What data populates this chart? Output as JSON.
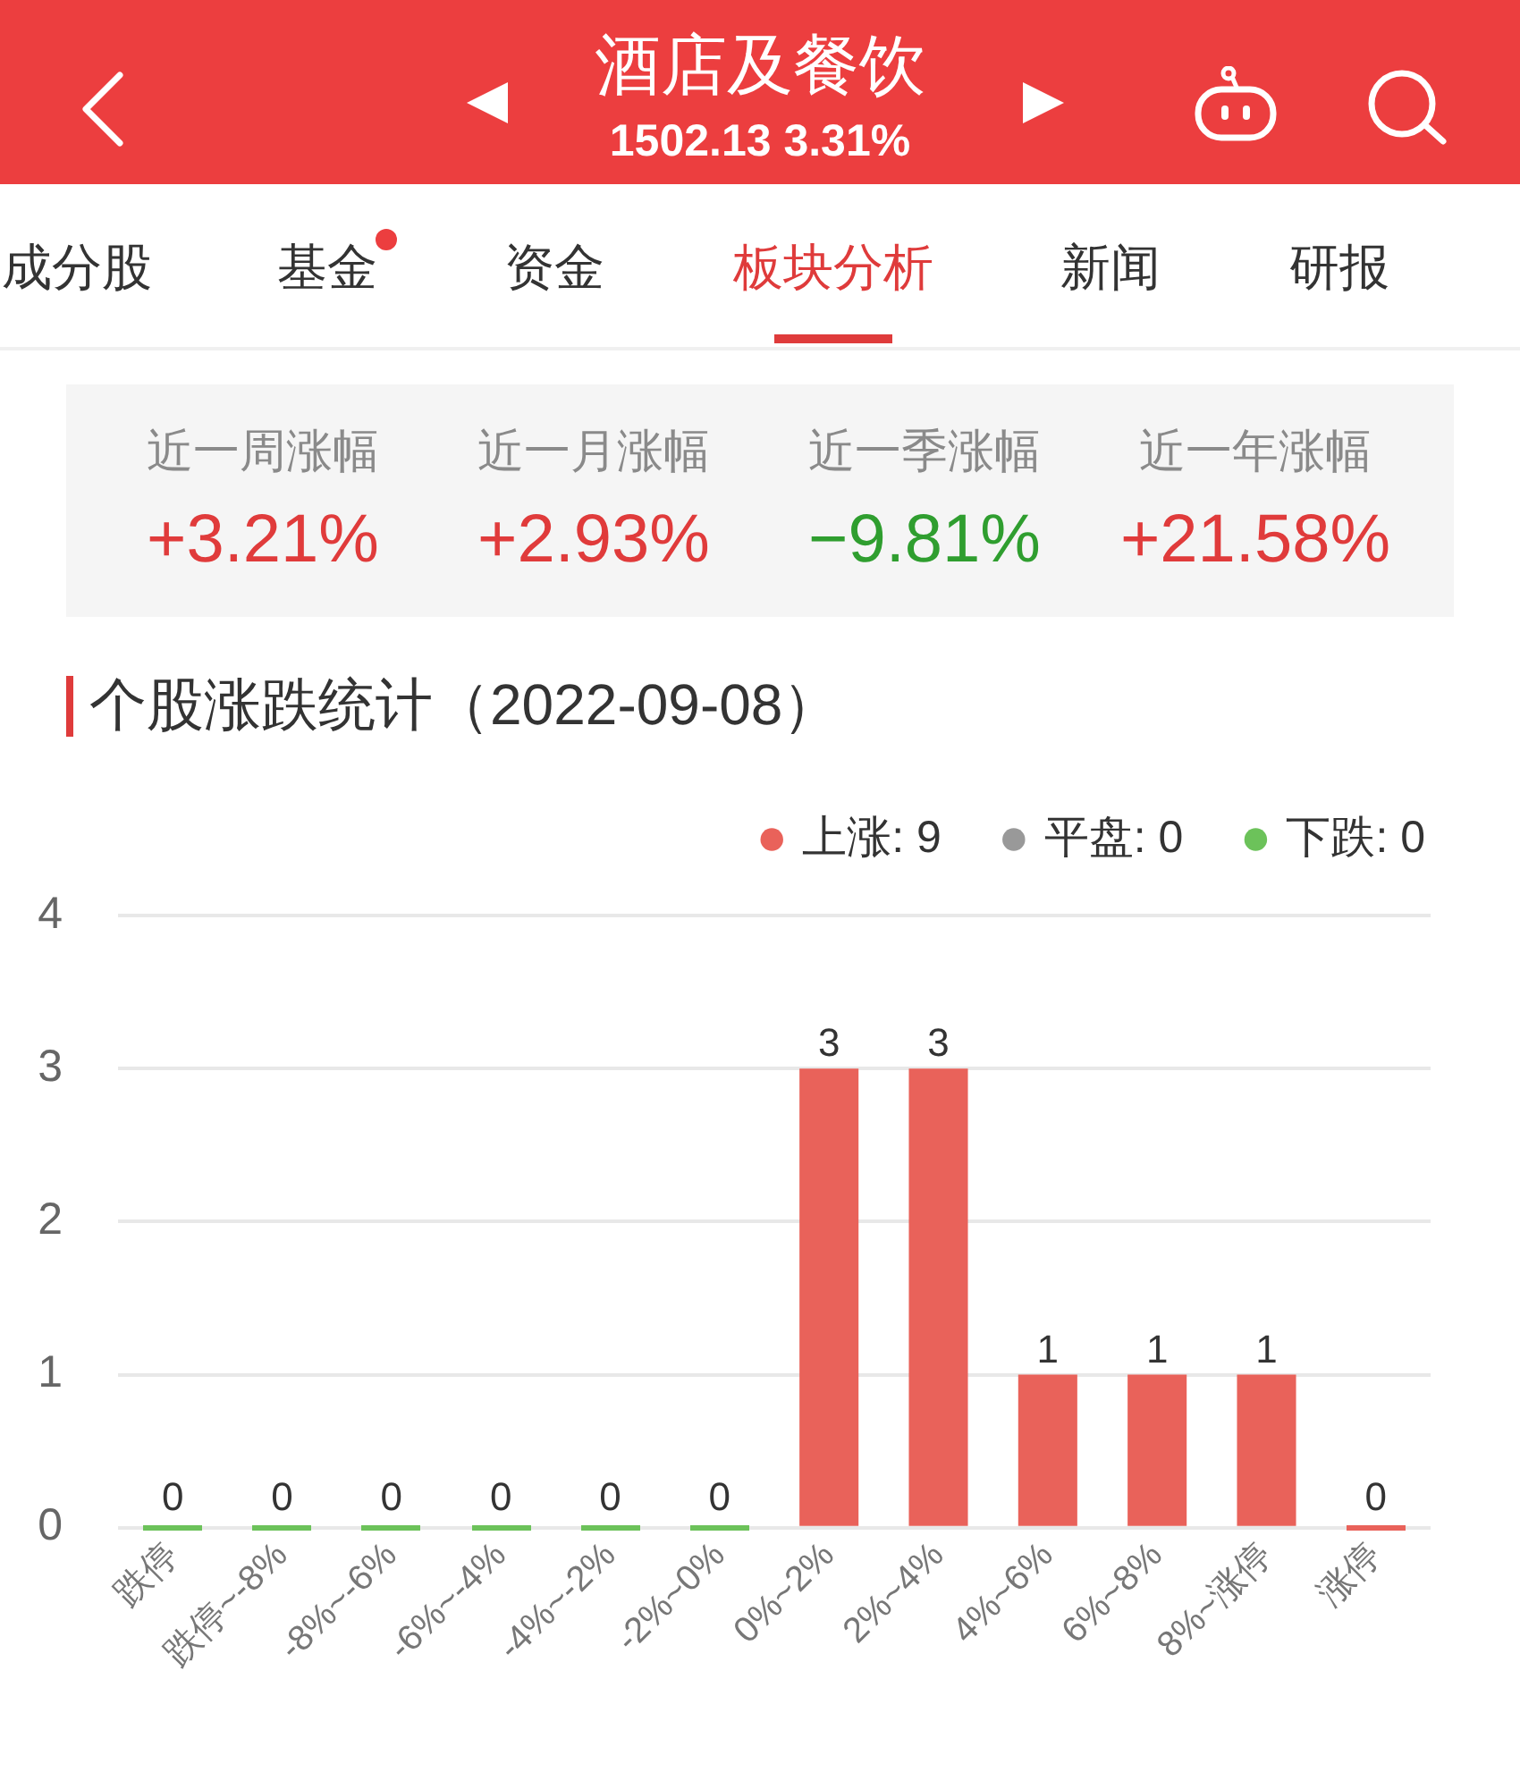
{
  "chart_data": [
    {
      "type": "other",
      "title": "酒店及餐饮",
      "subtitle": "1502.13 3.31%",
      "annotations": [
        "成分股",
        "基金",
        "资金",
        "板块分析",
        "新闻",
        "研报"
      ]
    },
    {
      "type": "other",
      "categories": [
        "近一周涨幅",
        "近一月涨幅",
        "近一季涨幅",
        "近一年涨幅"
      ],
      "values": [
        3.21,
        2.93,
        -9.81,
        21.58
      ],
      "value_labels": [
        "+3.21%",
        "+2.93%",
        "−9.81%",
        "+21.58%"
      ]
    },
    {
      "type": "bar",
      "title": "个股涨跌统计（2022-09-08）",
      "categories": [
        "跌停",
        "跌停~-8%",
        "-8%~-6%",
        "-6%~-4%",
        "-4%~-2%",
        "-2%~0%",
        "0%~2%",
        "2%~4%",
        "4%~6%",
        "6%~8%",
        "8%~涨停",
        "涨停"
      ],
      "series": [
        {
          "name": "上涨: 9",
          "color": "#e9625a",
          "values": [
            null,
            null,
            null,
            null,
            null,
            null,
            3,
            3,
            1,
            1,
            1,
            0
          ]
        },
        {
          "name": "平盘: 0",
          "color": "#999999",
          "values": [
            null,
            null,
            null,
            null,
            null,
            null,
            null,
            null,
            null,
            null,
            null,
            null
          ]
        },
        {
          "name": "下跌: 0",
          "color": "#6cc25a",
          "values": [
            0,
            0,
            0,
            0,
            0,
            0,
            null,
            null,
            null,
            null,
            null,
            null
          ]
        }
      ],
      "ylim": [
        0,
        4
      ],
      "yticks": [
        0,
        1,
        2,
        3,
        4
      ],
      "grid": "y",
      "legend": "top right",
      "data_labels": true
    }
  ]
}
